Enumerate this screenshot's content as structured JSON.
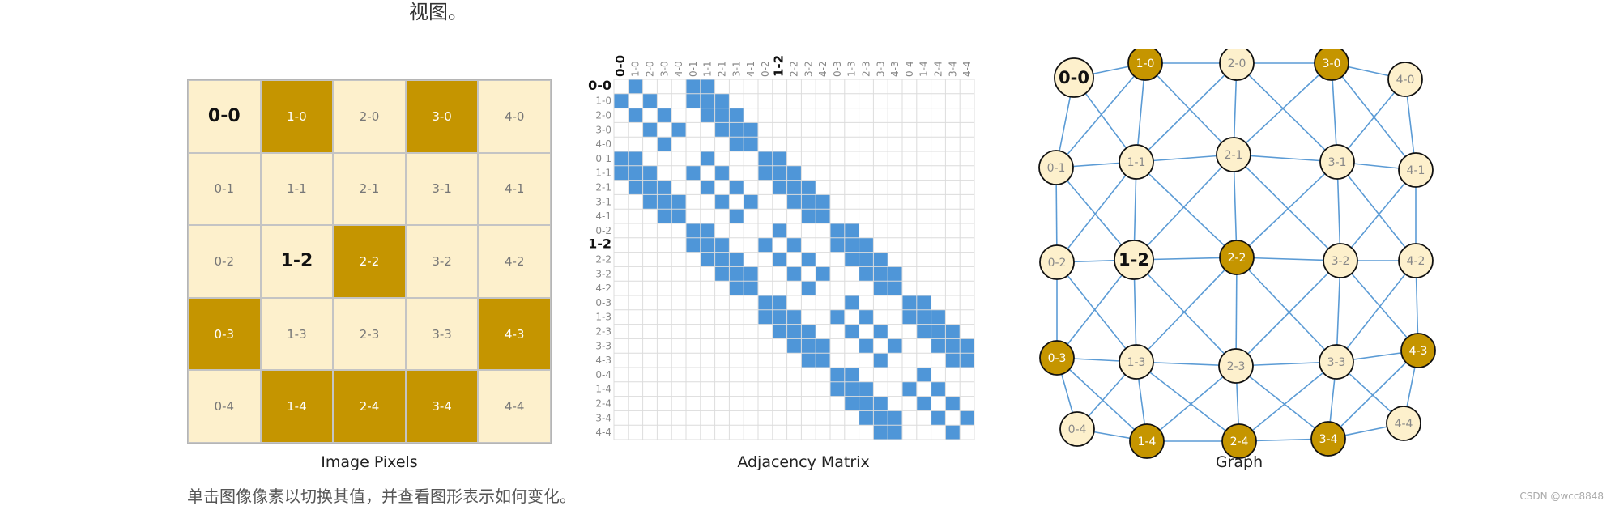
{
  "header": {
    "top_text": "视图。"
  },
  "panels": {
    "pixels_label": "Image Pixels",
    "matrix_label": "Adjacency Matrix",
    "graph_label": "Graph"
  },
  "caption": "单击图像像素以切换其值，并查看图形表示如何变化。",
  "watermark": "CSDN @wcc8848",
  "colors": {
    "light": "#fdf0cc",
    "dark": "#c59500",
    "edge": "#5b9bd5",
    "matrix_fill": "#4f96d8"
  },
  "pixels": [
    {
      "label": "0-0",
      "dark": false,
      "bold": true
    },
    {
      "label": "1-0",
      "dark": true,
      "bold": false
    },
    {
      "label": "2-0",
      "dark": false,
      "bold": false
    },
    {
      "label": "3-0",
      "dark": true,
      "bold": false
    },
    {
      "label": "4-0",
      "dark": false,
      "bold": false
    },
    {
      "label": "0-1",
      "dark": false,
      "bold": false
    },
    {
      "label": "1-1",
      "dark": false,
      "bold": false
    },
    {
      "label": "2-1",
      "dark": false,
      "bold": false
    },
    {
      "label": "3-1",
      "dark": false,
      "bold": false
    },
    {
      "label": "4-1",
      "dark": false,
      "bold": false
    },
    {
      "label": "0-2",
      "dark": false,
      "bold": false
    },
    {
      "label": "1-2",
      "dark": false,
      "bold": true
    },
    {
      "label": "2-2",
      "dark": true,
      "bold": false
    },
    {
      "label": "3-2",
      "dark": false,
      "bold": false
    },
    {
      "label": "4-2",
      "dark": false,
      "bold": false
    },
    {
      "label": "0-3",
      "dark": true,
      "bold": false
    },
    {
      "label": "1-3",
      "dark": false,
      "bold": false
    },
    {
      "label": "2-3",
      "dark": false,
      "bold": false
    },
    {
      "label": "3-3",
      "dark": false,
      "bold": false
    },
    {
      "label": "4-3",
      "dark": true,
      "bold": false
    },
    {
      "label": "0-4",
      "dark": false,
      "bold": false
    },
    {
      "label": "1-4",
      "dark": true,
      "bold": false
    },
    {
      "label": "2-4",
      "dark": true,
      "bold": false
    },
    {
      "label": "3-4",
      "dark": true,
      "bold": false
    },
    {
      "label": "4-4",
      "dark": false,
      "bold": false
    }
  ],
  "matrix": {
    "labels": [
      "0-0",
      "1-0",
      "2-0",
      "3-0",
      "4-0",
      "0-1",
      "1-1",
      "2-1",
      "3-1",
      "4-1",
      "0-2",
      "1-2",
      "2-2",
      "3-2",
      "4-2",
      "0-3",
      "1-3",
      "2-3",
      "3-3",
      "4-3",
      "0-4",
      "1-4",
      "2-4",
      "3-4",
      "4-4"
    ],
    "bold_labels": [
      "0-0",
      "1-2"
    ]
  }
}
